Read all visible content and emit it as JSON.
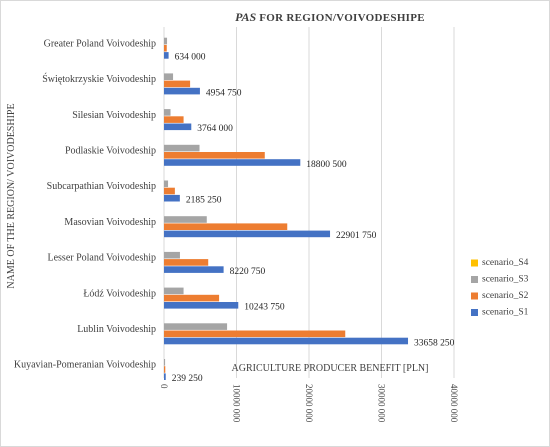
{
  "chart_data": {
    "type": "bar",
    "orientation": "horizontal",
    "title_italic": "PAS",
    "title_rest": " FOR REGION/VOIVODESHIPE",
    "xlabel": "AGRICULTURE PRODUCER BENEFIT [PLN]",
    "ylabel": "NAME OF THE REGION/ VOIVODESHIPE",
    "xlim": [
      0,
      40000000
    ],
    "xticks": [
      0,
      10000000,
      20000000,
      30000000,
      40000000
    ],
    "xtick_labels": [
      "0",
      "10000 000",
      "20000 000",
      "30000 000",
      "40000 000"
    ],
    "grid": true,
    "legend_position": "right",
    "categories": [
      "Greater Poland Voivodeship",
      "Świętokrzyskie Voivodeship",
      "Silesian Voivodeship",
      "Podlaskie Voivodeship",
      "Subcarpathian Voivodeship",
      "Masovian Voivodeship",
      "Lesser Poland Voivodeship",
      "Łódź Voivodeship",
      "Lublin Voivodeship",
      "Kuyavian-Pomeranian Voivodeship"
    ],
    "series": [
      {
        "name": "scenario_S4",
        "color": "#ffc000",
        "values": [
          0,
          0,
          0,
          0,
          0,
          0,
          0,
          0,
          0,
          0
        ]
      },
      {
        "name": "scenario_S3",
        "color": "#a5a5a5",
        "values": [
          420000,
          1250000,
          900000,
          4900000,
          560000,
          5900000,
          2200000,
          2700000,
          8700000,
          150000
        ]
      },
      {
        "name": "scenario_S2",
        "color": "#ed7d31",
        "values": [
          380000,
          3600000,
          2700000,
          13900000,
          1500000,
          17000000,
          6100000,
          7600000,
          25000000,
          180000
        ]
      },
      {
        "name": "scenario_S1",
        "color": "#4472c4",
        "values": [
          634000,
          4954750,
          3764000,
          18800500,
          2185250,
          22901750,
          8220750,
          10243750,
          33658250,
          239250
        ]
      }
    ],
    "data_labels": [
      "634 000",
      "4954 750",
      "3764 000",
      "18800 500",
      "2185 250",
      "22901 750",
      "8220 750",
      "10243 750",
      "33658 250",
      "239 250"
    ]
  }
}
